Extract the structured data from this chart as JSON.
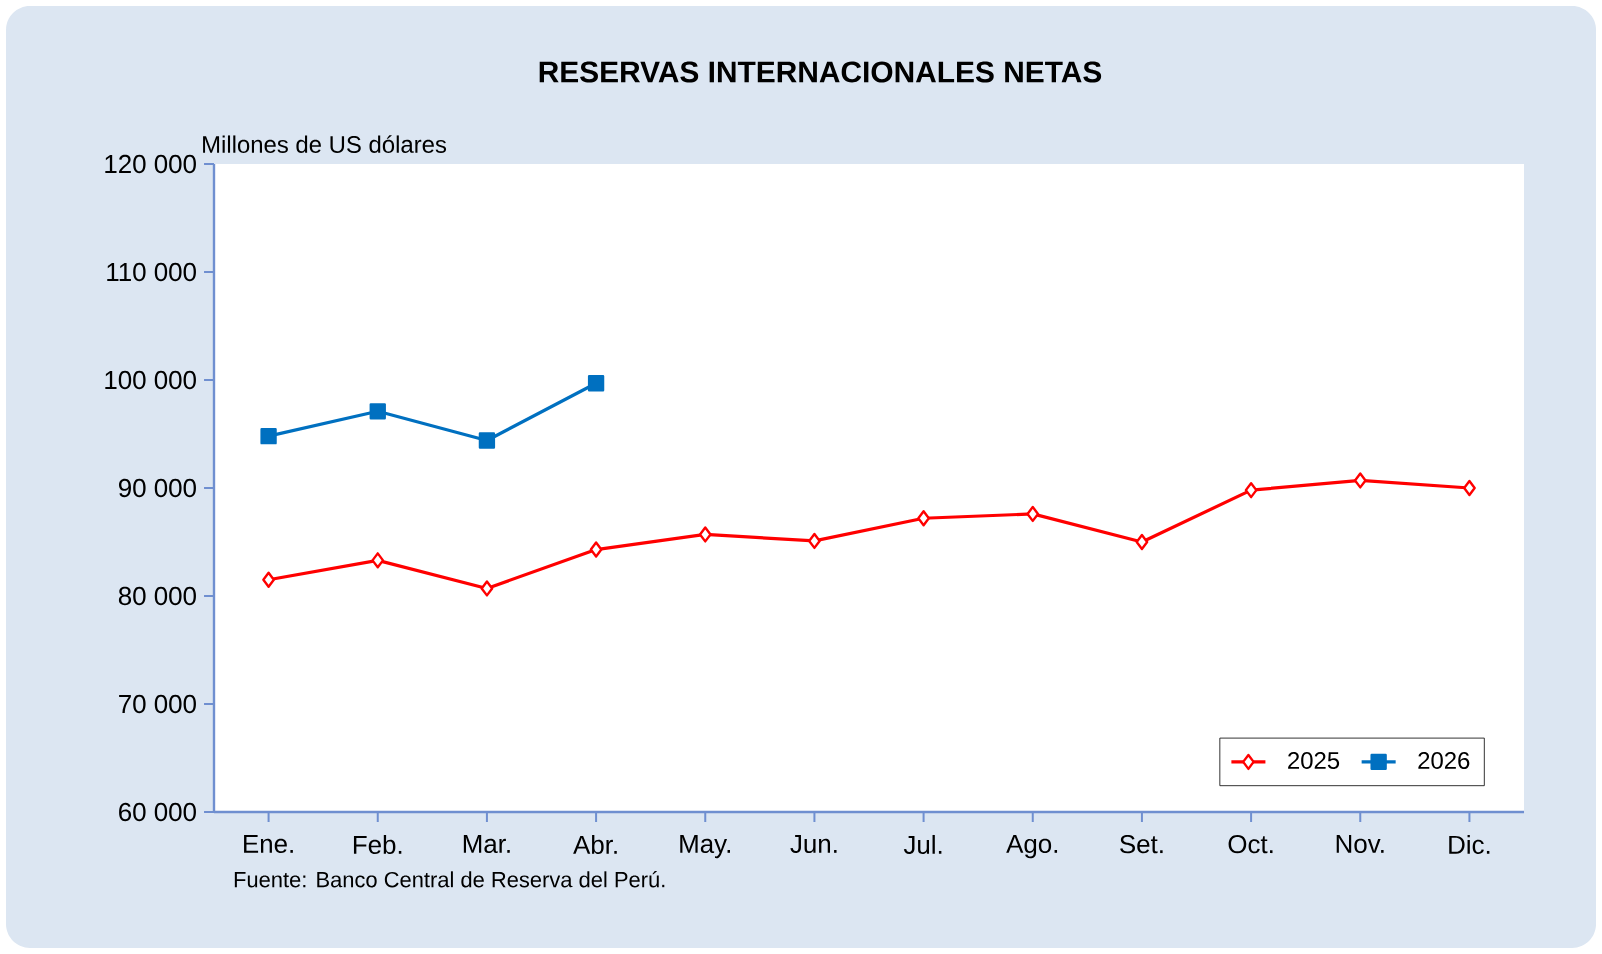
{
  "chart_data": {
    "type": "line",
    "title": "RESERVAS INTERNACIONALES NETAS",
    "ylabel": "Millones de US dólares",
    "categories": [
      "Ene.",
      "Feb.",
      "Mar.",
      "Abr.",
      "May.",
      "Jun.",
      "Jul.",
      "Ago.",
      "Set.",
      "Oct.",
      "Nov.",
      "Dic."
    ],
    "series": [
      {
        "name": "2025",
        "color": "#ff0000",
        "marker": "diamond",
        "values": [
          81500,
          83300,
          80700,
          84300,
          85700,
          85100,
          87200,
          87600,
          85000,
          89800,
          90700,
          90000
        ]
      },
      {
        "name": "2026",
        "color": "#0070c0",
        "marker": "square",
        "values": [
          94800,
          97100,
          94400,
          99700,
          null,
          null,
          null,
          null,
          null,
          null,
          null,
          null
        ]
      }
    ],
    "ylim": [
      60000,
      120000
    ],
    "yticks": [
      {
        "value": 60000,
        "label": "60 000"
      },
      {
        "value": 70000,
        "label": "70 000"
      },
      {
        "value": 80000,
        "label": "80 000"
      },
      {
        "value": 90000,
        "label": "90 000"
      },
      {
        "value": 100000,
        "label": "100 000"
      },
      {
        "value": 110000,
        "label": "110 000"
      },
      {
        "value": 120000,
        "label": "120 000"
      }
    ],
    "grid": false,
    "legend": "bottom right",
    "annotations": [
      "Fuente: Banco Central de Reserva del Perú."
    ]
  }
}
